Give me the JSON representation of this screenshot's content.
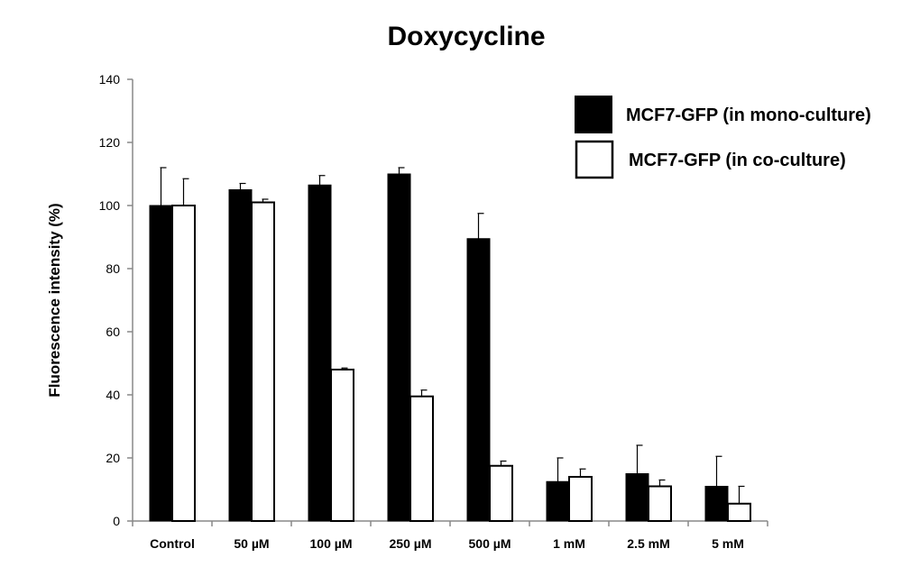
{
  "chart_data": {
    "type": "bar",
    "title": "Doxycycline",
    "xlabel": "",
    "ylabel": "Fluorescence intensity (%)",
    "ylim": [
      0,
      140
    ],
    "yticks": [
      0,
      20,
      40,
      60,
      80,
      100,
      120,
      140
    ],
    "categories": [
      "Control",
      "50  µM",
      "100  µM",
      "250  µM",
      "500 µM",
      "1 mM",
      "2.5 mM",
      "5 mM"
    ],
    "series": [
      {
        "name": "MCF7-GFP (in mono-culture)",
        "color": "#000000",
        "fill": "filled",
        "values": [
          100,
          105,
          106.5,
          110,
          89.5,
          12.5,
          15,
          11
        ],
        "errors": [
          12,
          2,
          3,
          2,
          8,
          7.5,
          9,
          9.5
        ]
      },
      {
        "name": "MCF7-GFP (in co-culture)",
        "color": "#ffffff",
        "fill": "open",
        "values": [
          100,
          101,
          48,
          39.5,
          17.5,
          14,
          11,
          5.5
        ],
        "errors": [
          8.5,
          1,
          0.5,
          2,
          1.5,
          2.5,
          2,
          5.5
        ]
      }
    ],
    "grid": false,
    "legend_position": "top-right"
  }
}
